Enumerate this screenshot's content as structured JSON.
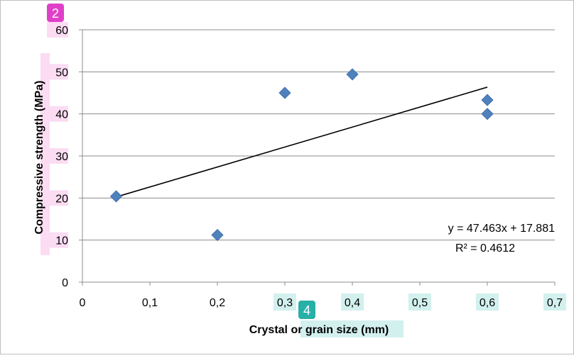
{
  "chart_data": {
    "type": "scatter",
    "title": "",
    "xlabel": "Crystal or grain size (mm)",
    "ylabel": "Compressive strength (MPa)",
    "xlim": [
      0,
      0.7
    ],
    "ylim": [
      0,
      60
    ],
    "x_ticks": [
      "0",
      "0,1",
      "0,2",
      "0,3",
      "0,4",
      "0,5",
      "0,6",
      "0,7"
    ],
    "y_ticks": [
      "0",
      "10",
      "20",
      "30",
      "40",
      "50",
      "60"
    ],
    "grid": {
      "horizontal": true,
      "vertical": false
    },
    "legend": "none",
    "series": [
      {
        "marker": "diamond",
        "color": "#4F81BD",
        "points": [
          {
            "x": 0.05,
            "y": 20.4
          },
          {
            "x": 0.2,
            "y": 11.2
          },
          {
            "x": 0.3,
            "y": 45.0
          },
          {
            "x": 0.4,
            "y": 49.4
          },
          {
            "x": 0.6,
            "y": 43.3
          },
          {
            "x": 0.6,
            "y": 40.0
          }
        ]
      }
    ],
    "trendline": {
      "type": "linear",
      "slope": 47.463,
      "intercept": 17.881,
      "x_range": [
        0.05,
        0.6
      ],
      "color": "#000000",
      "equation_label": "y = 47.463x + 17.881",
      "r2_label": "R² = 0.4612"
    },
    "callouts": [
      {
        "label": "2",
        "color": "#e040c8"
      },
      {
        "label": "4",
        "color": "#27b0a8"
      }
    ]
  }
}
